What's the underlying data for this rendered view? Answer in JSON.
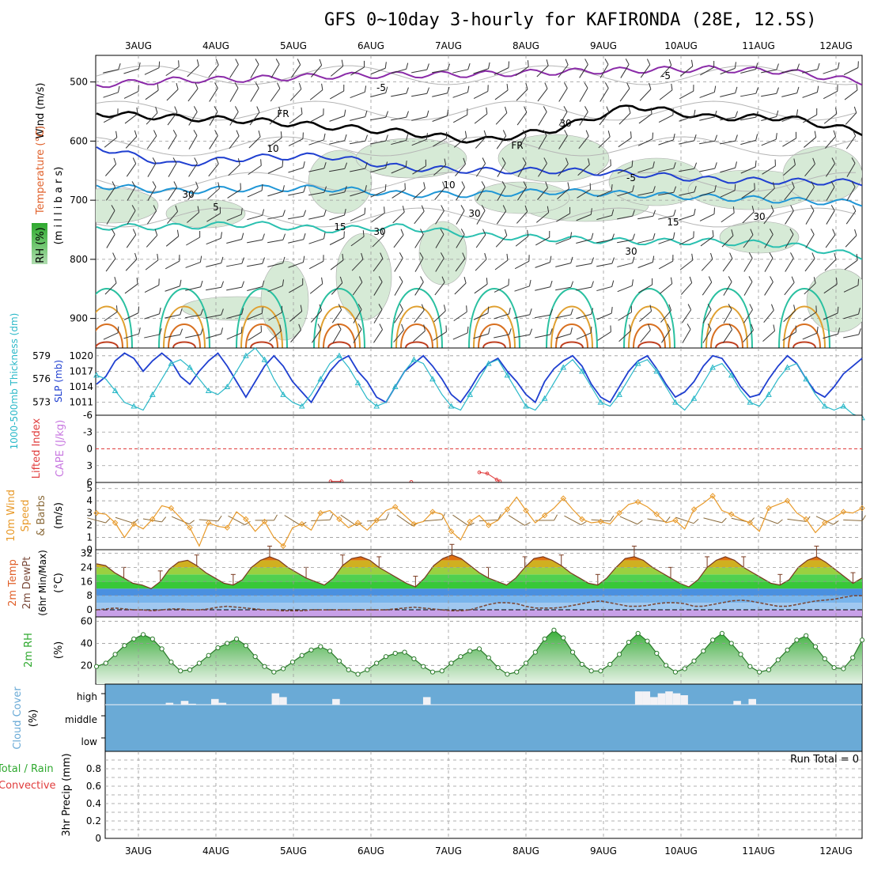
{
  "title": "GFS 0~10day 3-hourly for KAFIRONDA (28E, 12.5S)",
  "colors": {
    "rh_green": "#2ea82e",
    "wind_axis": "#000000",
    "temp_axis": "#e0602a",
    "slp_blue": "#1f3fd0",
    "thick_cyan": "#2ab8c8",
    "lifted_red": "#e03c3c",
    "cape_purple": "#c878e0",
    "wind_orange": "#e89a2a",
    "barb_brown": "#8a6a3a",
    "cloud_blue": "#6aaad6",
    "cloud_bar": "#f2f2f6",
    "temp_dewpt": "#7a4a3a"
  },
  "chart_data": [
    {
      "type": "heatmap",
      "panel": "upper-air",
      "ylabel_parts": [
        "Wind (m/s)",
        "Temperature (°C)",
        "RH (%)"
      ],
      "ylabel_unit": "(m i l l i b a r s)",
      "yticks": [
        "500",
        "600",
        "700",
        "800",
        "900"
      ],
      "ylim": [
        455,
        950
      ],
      "x": [
        "3AUG",
        "4AUG",
        "5AUG",
        "6AUG",
        "7AUG",
        "8AUG",
        "9AUG",
        "10AUG",
        "11AUG",
        "12AUG"
      ],
      "contour_labels": [
        "-5",
        "-5",
        "FR",
        "FR",
        "10",
        "30",
        "-5",
        "5",
        "10",
        "30",
        "30",
        "15",
        "30",
        "30",
        "15",
        "30"
      ],
      "isotherms": [
        {
          "value": -5,
          "p": [
            505,
            497,
            495,
            490,
            488,
            487,
            483,
            480,
            478,
            482,
            500
          ]
        },
        {
          "value": 0,
          "p": [
            553,
            560,
            565,
            575,
            585,
            600,
            580,
            540,
            560,
            560,
            585
          ]
        },
        {
          "value": 5,
          "p": [
            610,
            640,
            628,
            625,
            645,
            650,
            650,
            655,
            665,
            668,
            670
          ]
        },
        {
          "value": 10,
          "p": [
            675,
            685,
            680,
            680,
            690,
            690,
            685,
            690,
            695,
            700,
            705
          ]
        },
        {
          "value": 15,
          "p": [
            745,
            745,
            740,
            750,
            745,
            760,
            765,
            770,
            770,
            775,
            795
          ]
        }
      ]
    },
    {
      "type": "line",
      "panel": "slp-thickness",
      "ylabel_left": "1000-500mb Thickness (dm)",
      "ylabel_right": "SLP (mb)",
      "left_ticks": [
        "579",
        "576",
        "573"
      ],
      "right_ticks": [
        "1020",
        "1017",
        "1014",
        "1011"
      ],
      "ylim_slp": [
        1008.5,
        1021.5
      ],
      "series": [
        {
          "name": "SLP (mb)",
          "values": [
            1014.5,
            1016,
            1019,
            1020.5,
            1019.5,
            1017,
            1019,
            1020.5,
            1019,
            1016,
            1014.5,
            1017,
            1019,
            1020.5,
            1018,
            1015,
            1012,
            1015,
            1018,
            1020,
            1018,
            1015,
            1013,
            1011,
            1014,
            1017,
            1019,
            1020,
            1017,
            1015,
            1012,
            1011,
            1014,
            1017,
            1018.5,
            1020,
            1018,
            1015.5,
            1012.5,
            1011,
            1013.5,
            1016.5,
            1018.5,
            1019.5,
            1017,
            1015,
            1012.5,
            1011,
            1015,
            1017.5,
            1019,
            1020,
            1018,
            1014.5,
            1012,
            1011,
            1014,
            1017,
            1019,
            1020,
            1017.5,
            1014.5,
            1012,
            1013,
            1015,
            1018,
            1020,
            1019.5,
            1017,
            1014,
            1012,
            1012.5,
            1015.5,
            1018,
            1020,
            1018.5,
            1015.5,
            1013,
            1012,
            1014,
            1016.5,
            1018,
            1019.5
          ]
        },
        {
          "name": "1000-500mb Thickness (dm)",
          "values": [
            576.5,
            576,
            574.5,
            573,
            572.5,
            572,
            574,
            576,
            578,
            578.5,
            577.5,
            576,
            574.5,
            574,
            575,
            577,
            579,
            580,
            578.5,
            576,
            574,
            573,
            572.5,
            574,
            576,
            578,
            579,
            577.5,
            575.5,
            573.5,
            572.5,
            573,
            575,
            577,
            578.5,
            578,
            576,
            574,
            572.5,
            572,
            574,
            576,
            578,
            578.5,
            576.5,
            574.5,
            572.5,
            572,
            573.5,
            575.5,
            577.5,
            578.5,
            577,
            575,
            573,
            572.5,
            574,
            576,
            578,
            578.5,
            577,
            575,
            573,
            572,
            573.5,
            575.5,
            577.5,
            578,
            576.5,
            574.5,
            573,
            572.5,
            574,
            576,
            577.5,
            578,
            576,
            574,
            572.5,
            572,
            572.5,
            571.5,
            571
          ]
        }
      ]
    },
    {
      "type": "line",
      "panel": "cape-lifted",
      "ylabel_left": "Lifted Index",
      "ylabel_right": "CAPE (J/kg)",
      "yticks": [
        "-6",
        "-3",
        "0",
        "3",
        "6"
      ],
      "ylim": [
        -6,
        6
      ],
      "series": [
        {
          "name": "Lifted Index",
          "values": [
            5.8,
            5.8,
            5.9,
            4.2,
            4.4,
            5.5,
            5.8
          ]
        }
      ]
    },
    {
      "type": "line",
      "panel": "10m-wind",
      "ylabel": "10m Wind Speed & Barbs (m/s)",
      "yticks": [
        "0",
        "1",
        "2",
        "3",
        "4",
        "5"
      ],
      "ylim": [
        0,
        5.5
      ],
      "series": [
        {
          "name": "10m Wind Speed",
          "values": [
            3,
            2.9,
            2.2,
            1,
            2.1,
            1.7,
            2.5,
            3.6,
            3.4,
            2.6,
            1.8,
            0.3,
            2.2,
            1.9,
            1.8,
            3.1,
            2.5,
            1.5,
            2.3,
            1,
            0.3,
            1.8,
            2.1,
            1.6,
            3,
            3.2,
            2.5,
            1.8,
            2.2,
            1.6,
            2.4,
            3.2,
            3.5,
            2.8,
            2.1,
            2.3,
            3.1,
            2.9,
            1.5,
            0.8,
            2.3,
            2.8,
            2,
            2.4,
            3.3,
            4.3,
            3.2,
            2.2,
            2.8,
            3.4,
            4.2,
            3.3,
            2.5,
            2.2,
            2.3,
            2.1,
            3,
            3.7,
            3.9,
            3.5,
            2.9,
            2.2,
            2.4,
            1.7,
            3.3,
            3.8,
            4.4,
            3.2,
            2.9,
            2.5,
            2.2,
            1.5,
            3.4,
            3.7,
            4,
            3,
            2.5,
            1.4,
            2.2,
            2.6,
            3.1,
            3,
            3.4
          ]
        }
      ]
    },
    {
      "type": "area",
      "panel": "2m-temp",
      "ylabel": "2m Temp 2m DewPt (6hr Min/Max) (°C)",
      "yticks": [
        "0",
        "8",
        "16",
        "24",
        "32"
      ],
      "ylim": [
        -4,
        34
      ],
      "series": [
        {
          "name": "2m Temp",
          "values": [
            26,
            25,
            21,
            18,
            15,
            14,
            12,
            16,
            23,
            27,
            28,
            25,
            21,
            18,
            15,
            14,
            17,
            24,
            28,
            30,
            28,
            24,
            21,
            18,
            16,
            14,
            18,
            25,
            29,
            30,
            28,
            24,
            21,
            18,
            15,
            13,
            18,
            25,
            29,
            31,
            29,
            25,
            21,
            18,
            16,
            14,
            18,
            24,
            29,
            30,
            28,
            25,
            21,
            18,
            15,
            14,
            18,
            24,
            29,
            30,
            28,
            24,
            21,
            18,
            15,
            13,
            17,
            24,
            28,
            30,
            28,
            24,
            21,
            18,
            15,
            14,
            17,
            24,
            28,
            30,
            27,
            23,
            19,
            15,
            18
          ]
        },
        {
          "name": "2m DewPt",
          "values": [
            0,
            0.5,
            1,
            0.5,
            0,
            0,
            -0.5,
            0,
            0.5,
            0.5,
            0,
            0,
            0.5,
            1.5,
            2,
            1.5,
            1,
            0.5,
            0,
            0,
            -0.5,
            -0.5,
            -0.5,
            0,
            0,
            0,
            0,
            0,
            0,
            0,
            0,
            0,
            0.5,
            1,
            1.5,
            1,
            0.5,
            0,
            -0.5,
            -0.5,
            0,
            1.5,
            3,
            4,
            4,
            3.5,
            2,
            1,
            1,
            1,
            1.5,
            2.5,
            3.5,
            4.5,
            5,
            4,
            3,
            2,
            2,
            2.5,
            3.5,
            4,
            4,
            3.5,
            2,
            2,
            3,
            4,
            5,
            5.5,
            5,
            4,
            3,
            2,
            2,
            3,
            4,
            5,
            5.5,
            6,
            7,
            8,
            8
          ]
        }
      ]
    },
    {
      "type": "area",
      "panel": "2m-rh",
      "ylabel": "2m RH (%)",
      "yticks": [
        "20",
        "40",
        "60"
      ],
      "ylim": [
        3,
        64
      ],
      "series": [
        {
          "name": "2m RH",
          "values": [
            19,
            22,
            30,
            38,
            44,
            48,
            44,
            35,
            23,
            15,
            16,
            22,
            29,
            36,
            40,
            44,
            38,
            28,
            19,
            14,
            17,
            23,
            29,
            34,
            37,
            33,
            24,
            16,
            12,
            16,
            22,
            28,
            31,
            32,
            26,
            19,
            14,
            15,
            22,
            28,
            33,
            35,
            27,
            18,
            12,
            14,
            22,
            32,
            44,
            52,
            45,
            32,
            21,
            15,
            15,
            21,
            30,
            41,
            49,
            42,
            31,
            20,
            14,
            17,
            24,
            33,
            43,
            49,
            40,
            30,
            19,
            14,
            16,
            25,
            34,
            43,
            47,
            37,
            26,
            18,
            17,
            27,
            43
          ]
        }
      ]
    },
    {
      "type": "bar",
      "panel": "cloud-cover",
      "ylabel": "Cloud Cover (%)",
      "yticks": [
        "high",
        "middle",
        "low"
      ],
      "series": [
        {
          "name": "high cloud",
          "values": [
            0,
            0,
            0,
            0,
            0,
            0,
            0,
            0,
            0.1,
            0,
            0.2,
            0.05,
            0,
            0,
            0.3,
            0.1,
            0,
            0,
            0,
            0,
            0,
            0,
            0.6,
            0.4,
            0,
            0,
            0,
            0,
            0,
            0,
            0.3,
            0,
            0,
            0,
            0,
            0,
            0,
            0,
            0,
            0,
            0,
            0,
            0.4,
            0,
            0,
            0,
            0,
            0,
            0,
            0,
            0,
            0,
            0,
            0,
            0,
            0,
            0,
            0,
            0,
            0,
            0,
            0,
            0,
            0,
            0,
            0,
            0,
            0,
            0,
            0,
            0.7,
            0.7,
            0.4,
            0.6,
            0.7,
            0.6,
            0.5,
            0,
            0,
            0,
            0,
            0,
            0,
            0.2,
            0,
            0.3,
            0,
            0,
            0,
            0,
            0,
            0,
            0,
            0,
            0,
            0,
            0,
            0,
            0,
            0
          ]
        }
      ]
    },
    {
      "type": "bar",
      "panel": "precip",
      "ylabel": "3hr Precip (mm)",
      "ylabel_left": [
        "Total / Rain",
        "Convective"
      ],
      "yticks": [
        "0",
        "0.2",
        "0.4",
        "0.6",
        "0.8"
      ],
      "ylim": [
        0,
        1
      ],
      "annotation": "Run Total = 0",
      "series": [
        {
          "name": "3hr Precip",
          "values": []
        }
      ]
    }
  ]
}
